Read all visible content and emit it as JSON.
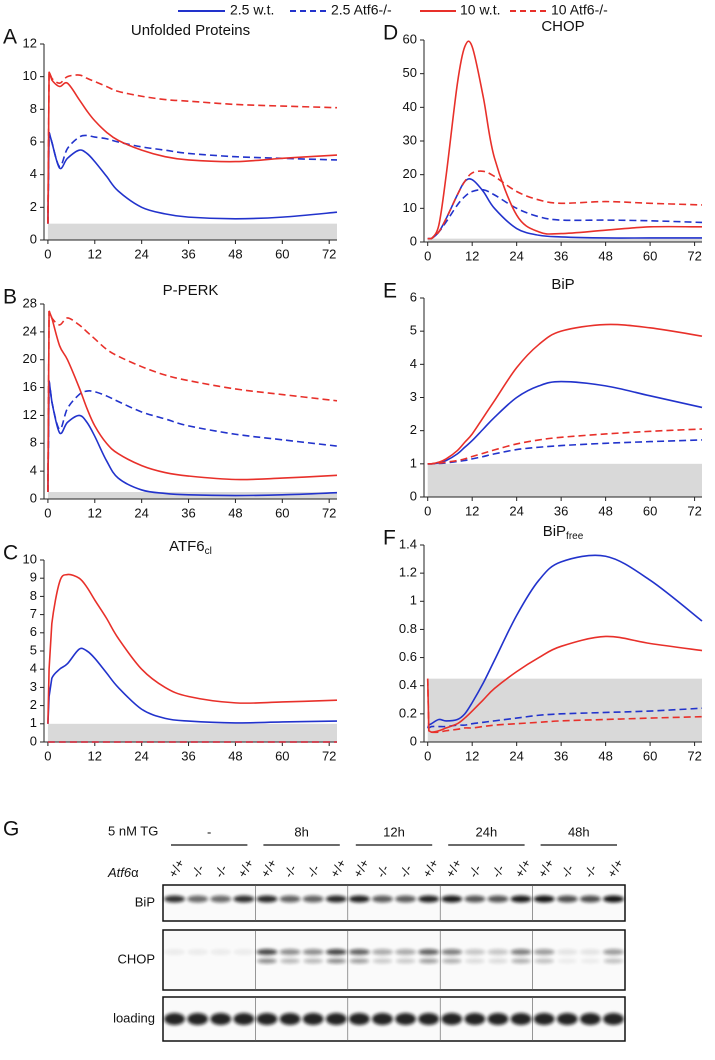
{
  "legend": [
    {
      "name": "2.5 w.t.",
      "color": "#2233cc",
      "dashed": false
    },
    {
      "name": "2.5 Atf6-/-",
      "color": "#2233cc",
      "dashed": true
    },
    {
      "name": "10 w.t.",
      "color": "#e8302a",
      "dashed": false
    },
    {
      "name": "10 Atf6-/-",
      "color": "#e8302a",
      "dashed": true
    }
  ],
  "chart_data": [
    {
      "type": "line",
      "panel": "A",
      "title": "Unfolded Proteins",
      "x": [
        0,
        0.3,
        1,
        3,
        5,
        8,
        10,
        12,
        15,
        18,
        24,
        30,
        36,
        48,
        60,
        74
      ],
      "series": [
        {
          "color": "#2233cc",
          "dashed": false,
          "values": [
            1,
            6.6,
            6.0,
            4.4,
            5.0,
            5.5,
            5.3,
            4.8,
            3.9,
            3.0,
            2.0,
            1.6,
            1.4,
            1.3,
            1.4,
            1.7
          ]
        },
        {
          "color": "#2233cc",
          "dashed": true,
          "values": [
            1,
            6.6,
            6.0,
            4.5,
            5.6,
            6.3,
            6.4,
            6.3,
            6.2,
            6.0,
            5.7,
            5.5,
            5.3,
            5.1,
            5.0,
            4.9
          ]
        },
        {
          "color": "#e8302a",
          "dashed": false,
          "values": [
            1,
            10.3,
            9.8,
            9.4,
            9.6,
            8.6,
            7.9,
            7.3,
            6.6,
            6.1,
            5.5,
            5.1,
            4.9,
            4.8,
            5.0,
            5.2
          ]
        },
        {
          "color": "#e8302a",
          "dashed": true,
          "values": [
            1,
            10.3,
            9.9,
            9.6,
            10.0,
            10.1,
            9.9,
            9.7,
            9.4,
            9.1,
            8.8,
            8.6,
            8.5,
            8.3,
            8.2,
            8.1
          ]
        }
      ],
      "xlim": [
        -1,
        74
      ],
      "xticks": [
        0,
        12,
        24,
        36,
        48,
        60,
        72
      ],
      "ylim": [
        0,
        12
      ],
      "yticks": [
        0,
        2,
        4,
        6,
        8,
        10,
        12
      ],
      "shaded_band": [
        0,
        1
      ],
      "shade_color": "#d9d9d9"
    },
    {
      "type": "line",
      "panel": "B",
      "title": "P-PERK",
      "x": [
        0,
        0.3,
        1,
        3,
        5,
        8,
        10,
        12,
        15,
        18,
        24,
        30,
        36,
        48,
        60,
        74
      ],
      "series": [
        {
          "color": "#2233cc",
          "dashed": false,
          "values": [
            1,
            17,
            14,
            9.5,
            11,
            12,
            11,
            9,
            5.5,
            3,
            1.3,
            0.8,
            0.6,
            0.5,
            0.6,
            0.9
          ]
        },
        {
          "color": "#2233cc",
          "dashed": true,
          "values": [
            1,
            17,
            14,
            10,
            13,
            15,
            15.5,
            15.4,
            14.8,
            14,
            12.5,
            11.5,
            10.5,
            9.3,
            8.5,
            7.6
          ]
        },
        {
          "color": "#e8302a",
          "dashed": false,
          "values": [
            1,
            27,
            26,
            22,
            20,
            16,
            13,
            10.5,
            8,
            6.5,
            4.8,
            3.8,
            3.3,
            2.8,
            3.0,
            3.4
          ]
        },
        {
          "color": "#e8302a",
          "dashed": true,
          "values": [
            1,
            27,
            26,
            25,
            26,
            25,
            24,
            23,
            21.5,
            20.5,
            19,
            17.8,
            17,
            15.8,
            15,
            14.1
          ]
        }
      ],
      "xlim": [
        -1,
        74
      ],
      "xticks": [
        0,
        12,
        24,
        36,
        48,
        60,
        72
      ],
      "ylim": [
        0,
        28
      ],
      "yticks": [
        0,
        4,
        8,
        12,
        16,
        20,
        24,
        28
      ],
      "shaded_band": [
        0,
        1
      ],
      "shade_color": "#d9d9d9"
    },
    {
      "type": "line",
      "panel": "C",
      "title": "ATF6",
      "title_subscript": "cl",
      "x": [
        0,
        0.3,
        1,
        3,
        5,
        8,
        10,
        12,
        15,
        18,
        24,
        30,
        36,
        48,
        60,
        74
      ],
      "series": [
        {
          "color": "#2233cc",
          "dashed": false,
          "values": [
            1,
            2.5,
            3.5,
            4.0,
            4.3,
            5.1,
            5.0,
            4.6,
            3.8,
            3.0,
            1.8,
            1.3,
            1.15,
            1.05,
            1.1,
            1.15
          ]
        },
        {
          "color": "#2233cc",
          "dashed": true,
          "values": [
            0,
            0,
            0,
            0,
            0,
            0,
            0,
            0,
            0,
            0,
            0,
            0,
            0,
            0,
            0,
            0
          ]
        },
        {
          "color": "#e8302a",
          "dashed": false,
          "values": [
            1,
            4,
            6.5,
            8.8,
            9.2,
            9.0,
            8.5,
            7.8,
            6.8,
            5.7,
            4.0,
            3.0,
            2.5,
            2.15,
            2.2,
            2.3
          ]
        },
        {
          "color": "#e8302a",
          "dashed": true,
          "values": [
            0,
            0,
            0,
            0,
            0,
            0,
            0,
            0,
            0,
            0,
            0,
            0,
            0,
            0,
            0,
            0
          ]
        }
      ],
      "xlim": [
        -1,
        74
      ],
      "xticks": [
        0,
        12,
        24,
        36,
        48,
        60,
        72
      ],
      "ylim": [
        0,
        10
      ],
      "yticks": [
        0,
        1,
        2,
        3,
        4,
        5,
        6,
        7,
        8,
        9,
        10
      ],
      "shaded_band": [
        0,
        1
      ],
      "shade_color": "#d9d9d9"
    },
    {
      "type": "line",
      "panel": "D",
      "title": "CHOP",
      "x": [
        0,
        0.3,
        1,
        3,
        5,
        8,
        10,
        12,
        15,
        18,
        24,
        30,
        36,
        48,
        60,
        74
      ],
      "series": [
        {
          "color": "#2233cc",
          "dashed": false,
          "values": [
            1,
            1,
            1,
            3,
            7,
            14,
            18,
            18.5,
            15,
            10,
            4,
            2,
            1.5,
            1.2,
            1.2,
            1.2
          ]
        },
        {
          "color": "#2233cc",
          "dashed": true,
          "values": [
            1,
            1,
            1,
            3,
            6,
            11,
            13.5,
            15,
            15.5,
            14,
            10,
            7.5,
            6.5,
            6.5,
            6.3,
            5.8
          ]
        },
        {
          "color": "#e8302a",
          "dashed": false,
          "values": [
            1,
            1,
            1,
            5,
            20,
            47,
            58,
            58,
            43,
            25,
            8,
            3,
            2.5,
            3.5,
            4.5,
            4.5
          ]
        },
        {
          "color": "#e8302a",
          "dashed": true,
          "values": [
            1,
            1,
            1,
            3,
            7,
            14,
            18,
            20.5,
            21,
            19.5,
            15,
            12.5,
            11.5,
            12,
            11.5,
            11
          ]
        }
      ],
      "xlim": [
        -1,
        74
      ],
      "xticks": [
        0,
        12,
        24,
        36,
        48,
        60,
        72
      ],
      "ylim": [
        0,
        60
      ],
      "yticks": [
        0,
        10,
        20,
        30,
        40,
        50,
        60
      ],
      "shaded_band": [
        0,
        1
      ],
      "shade_color": "#d9d9d9"
    },
    {
      "type": "line",
      "panel": "E",
      "title": "BiP",
      "x": [
        0,
        0.3,
        1,
        3,
        5,
        8,
        10,
        12,
        15,
        18,
        24,
        30,
        36,
        48,
        60,
        74
      ],
      "series": [
        {
          "color": "#2233cc",
          "dashed": false,
          "values": [
            1,
            1,
            1,
            1.03,
            1.1,
            1.3,
            1.5,
            1.7,
            2.05,
            2.4,
            3.0,
            3.35,
            3.48,
            3.35,
            3.05,
            2.7
          ]
        },
        {
          "color": "#2233cc",
          "dashed": true,
          "values": [
            1,
            1,
            1,
            1.01,
            1.03,
            1.07,
            1.1,
            1.15,
            1.22,
            1.3,
            1.43,
            1.5,
            1.55,
            1.62,
            1.67,
            1.72
          ]
        },
        {
          "color": "#e8302a",
          "dashed": false,
          "values": [
            1,
            1,
            1,
            1.05,
            1.15,
            1.4,
            1.65,
            1.9,
            2.4,
            2.9,
            3.9,
            4.6,
            5.0,
            5.2,
            5.1,
            4.85
          ]
        },
        {
          "color": "#e8302a",
          "dashed": true,
          "values": [
            1,
            1,
            1,
            1.02,
            1.05,
            1.1,
            1.15,
            1.22,
            1.32,
            1.42,
            1.6,
            1.72,
            1.8,
            1.9,
            1.98,
            2.05
          ]
        }
      ],
      "xlim": [
        -1,
        74
      ],
      "xticks": [
        0,
        12,
        24,
        36,
        48,
        60,
        72
      ],
      "ylim": [
        0,
        6
      ],
      "yticks": [
        0,
        1,
        2,
        3,
        4,
        5,
        6
      ],
      "shaded_band": [
        0,
        1
      ],
      "shade_color": "#d9d9d9"
    },
    {
      "type": "line",
      "panel": "F",
      "title": "BiP",
      "title_subscript": "free",
      "x": [
        0,
        0.3,
        1,
        3,
        5,
        8,
        10,
        12,
        15,
        18,
        24,
        30,
        36,
        48,
        60,
        74
      ],
      "series": [
        {
          "color": "#2233cc",
          "dashed": false,
          "values": [
            0.1,
            0.12,
            0.13,
            0.16,
            0.15,
            0.16,
            0.2,
            0.28,
            0.42,
            0.58,
            0.9,
            1.15,
            1.28,
            1.32,
            1.15,
            0.86
          ]
        },
        {
          "color": "#2233cc",
          "dashed": true,
          "values": [
            0.1,
            0.1,
            0.11,
            0.11,
            0.11,
            0.12,
            0.12,
            0.13,
            0.14,
            0.15,
            0.17,
            0.19,
            0.2,
            0.21,
            0.22,
            0.24
          ]
        },
        {
          "color": "#e8302a",
          "dashed": false,
          "values": [
            0.45,
            0.08,
            0.07,
            0.08,
            0.1,
            0.13,
            0.17,
            0.22,
            0.3,
            0.38,
            0.5,
            0.6,
            0.68,
            0.75,
            0.7,
            0.65
          ]
        },
        {
          "color": "#e8302a",
          "dashed": true,
          "values": [
            0.45,
            0.08,
            0.07,
            0.07,
            0.08,
            0.09,
            0.1,
            0.1,
            0.11,
            0.12,
            0.13,
            0.14,
            0.15,
            0.16,
            0.17,
            0.18
          ]
        }
      ],
      "xlim": [
        -1,
        74
      ],
      "xticks": [
        0,
        12,
        24,
        36,
        48,
        60,
        72
      ],
      "ylim": [
        0,
        1.4
      ],
      "yticks": [
        0,
        0.2,
        0.4,
        0.6,
        0.8,
        1,
        1.2,
        1.4
      ],
      "shaded_band": [
        0,
        0.45
      ],
      "shade_color": "#d9d9d9"
    }
  ],
  "blot": {
    "panel": "G",
    "treatment": "5 nM TG",
    "groups": [
      "-",
      "8h",
      "12h",
      "24h",
      "48h"
    ],
    "genotype_label": "Atf6",
    "genotype_label_suffix": "α",
    "lanes": [
      "+/+",
      "-/-",
      "-/-",
      "+/+",
      "+/+",
      "-/-",
      "-/-",
      "+/+",
      "+/+",
      "-/-",
      "-/-",
      "+/+",
      "+/+",
      "-/-",
      "-/-",
      "+/+",
      "+/+",
      "-/-",
      "-/-",
      "+/+"
    ],
    "rows": [
      "BiP",
      "CHOP",
      "loading"
    ]
  }
}
